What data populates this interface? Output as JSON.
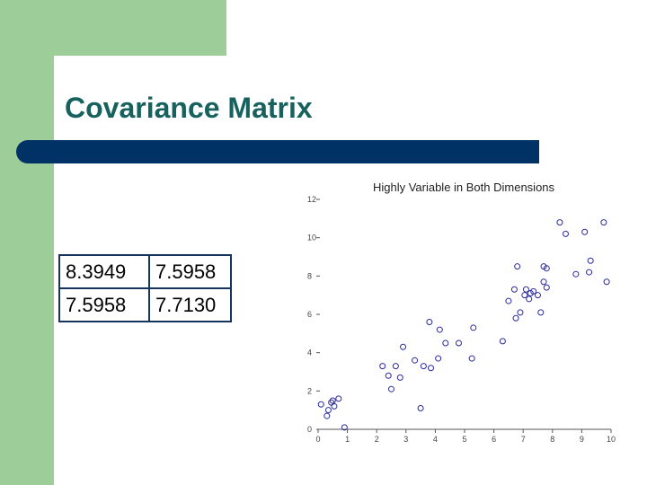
{
  "slide": {
    "title": "Covariance Matrix",
    "accent_colors": {
      "green": "#9dcd99",
      "navy_bar": "#003265",
      "title_teal": "#17625e"
    }
  },
  "matrix": {
    "rows": [
      [
        "8.3949",
        "7.5958"
      ],
      [
        "7.5958",
        "7.7130"
      ]
    ]
  },
  "chart_data": {
    "type": "scatter",
    "title": "Highly Variable in Both Dimensions",
    "xlabel": "",
    "ylabel": "",
    "xlim": [
      0,
      10
    ],
    "ylim": [
      0,
      12
    ],
    "x_ticks": [
      "0",
      "1",
      "2",
      "3",
      "4",
      "5",
      "6",
      "7",
      "8",
      "9",
      "10"
    ],
    "y_ticks": [
      "0",
      "2",
      "4",
      "6",
      "8",
      "10",
      "12"
    ],
    "grid": false,
    "marker": "circle",
    "marker_color": "#2a2aa0",
    "points": [
      [
        0.1,
        1.3
      ],
      [
        0.3,
        0.7
      ],
      [
        0.35,
        1.0
      ],
      [
        0.45,
        1.4
      ],
      [
        0.5,
        1.5
      ],
      [
        0.55,
        1.2
      ],
      [
        0.7,
        1.6
      ],
      [
        0.9,
        0.1
      ],
      [
        2.2,
        3.3
      ],
      [
        2.4,
        2.8
      ],
      [
        2.5,
        2.1
      ],
      [
        2.65,
        3.3
      ],
      [
        2.8,
        2.7
      ],
      [
        2.9,
        4.3
      ],
      [
        3.3,
        3.6
      ],
      [
        3.5,
        1.1
      ],
      [
        3.6,
        3.3
      ],
      [
        3.8,
        5.6
      ],
      [
        3.85,
        3.2
      ],
      [
        4.1,
        3.7
      ],
      [
        4.15,
        5.2
      ],
      [
        4.35,
        4.5
      ],
      [
        4.8,
        4.5
      ],
      [
        5.25,
        3.7
      ],
      [
        5.3,
        5.3
      ],
      [
        6.3,
        4.6
      ],
      [
        6.5,
        6.7
      ],
      [
        6.7,
        7.3
      ],
      [
        6.75,
        5.8
      ],
      [
        6.8,
        8.5
      ],
      [
        6.9,
        6.1
      ],
      [
        7.05,
        7.0
      ],
      [
        7.1,
        7.3
      ],
      [
        7.2,
        6.8
      ],
      [
        7.25,
        7.1
      ],
      [
        7.35,
        7.2
      ],
      [
        7.5,
        7.0
      ],
      [
        7.6,
        6.1
      ],
      [
        7.7,
        7.7
      ],
      [
        7.7,
        8.5
      ],
      [
        7.8,
        7.4
      ],
      [
        7.8,
        8.4
      ],
      [
        8.25,
        10.8
      ],
      [
        8.45,
        10.2
      ],
      [
        8.8,
        8.1
      ],
      [
        9.1,
        10.3
      ],
      [
        9.25,
        8.2
      ],
      [
        9.3,
        8.8
      ],
      [
        9.75,
        10.8
      ],
      [
        9.85,
        7.7
      ]
    ]
  }
}
